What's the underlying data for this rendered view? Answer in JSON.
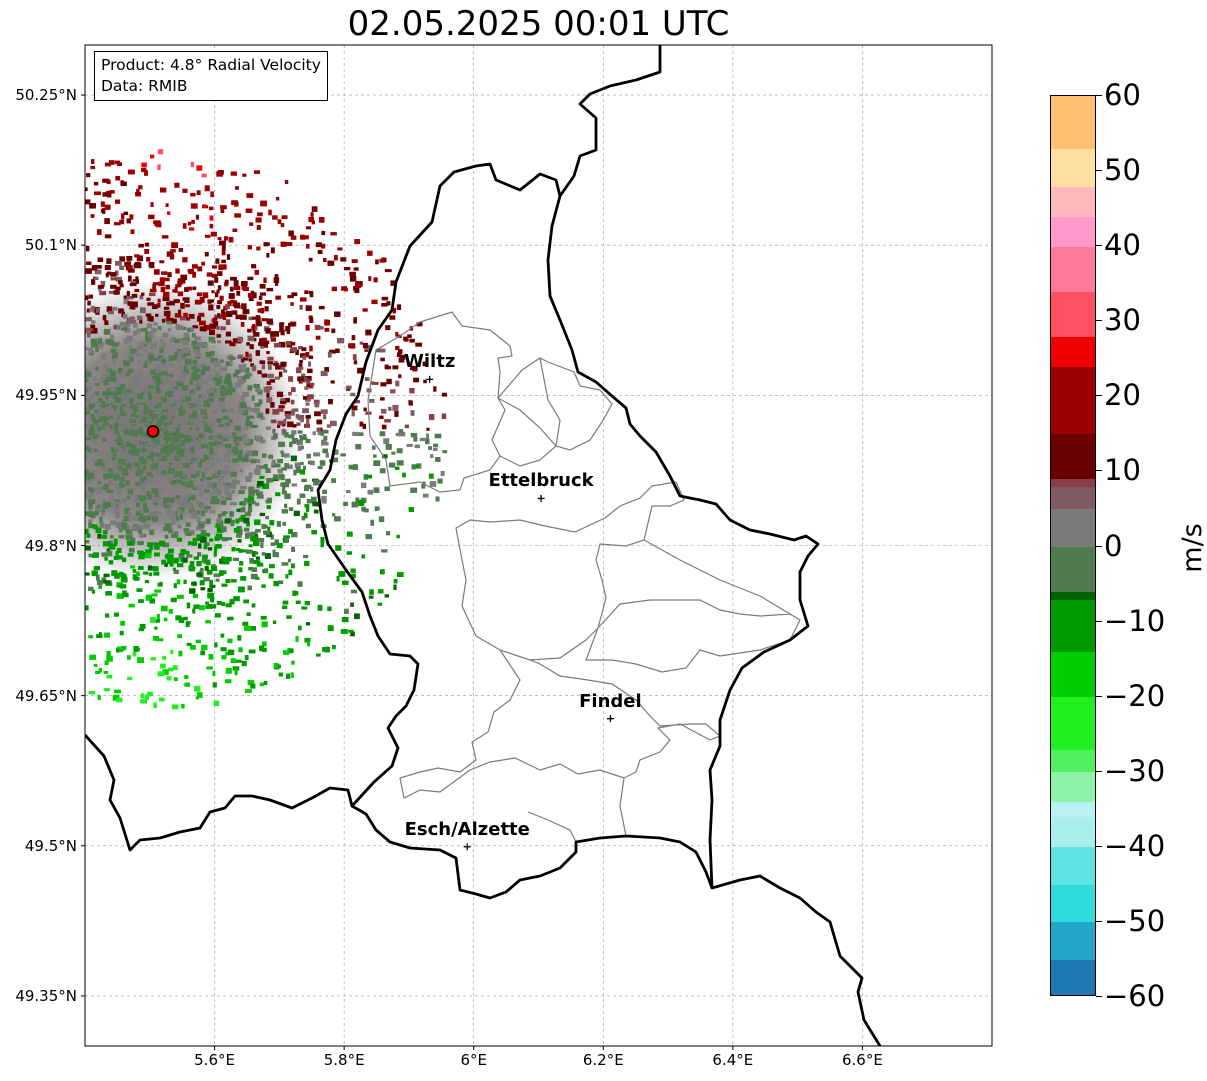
{
  "title": "02.05.2025 00:01 UTC",
  "info": {
    "product": "Product: 4.8° Radial Velocity",
    "data": "Data: RMIB"
  },
  "map": {
    "lon_range": [
      5.4,
      6.8
    ],
    "lat_range": [
      49.3,
      50.3
    ],
    "lat_ticks": [
      {
        "value": 50.25,
        "label": "50.25°N"
      },
      {
        "value": 50.1,
        "label": "50.1°N"
      },
      {
        "value": 49.95,
        "label": "49.95°N"
      },
      {
        "value": 49.8,
        "label": "49.8°N"
      },
      {
        "value": 49.65,
        "label": "49.65°N"
      },
      {
        "value": 49.5,
        "label": "49.5°N"
      },
      {
        "value": 49.35,
        "label": "49.35°N"
      }
    ],
    "lon_ticks": [
      {
        "value": 5.6,
        "label": "5.6°E"
      },
      {
        "value": 5.8,
        "label": "5.8°E"
      },
      {
        "value": 6.0,
        "label": "6°E"
      },
      {
        "value": 6.2,
        "label": "6.2°E"
      },
      {
        "value": 6.4,
        "label": "6.4°E"
      },
      {
        "value": 6.6,
        "label": "6.6°E"
      }
    ],
    "gridlines": true,
    "radar_site": {
      "lon": 5.505,
      "lat": 49.914,
      "color": "#ff0000"
    },
    "cities": [
      {
        "name": "Wiltz",
        "lon": 5.932,
        "lat": 49.966
      },
      {
        "name": "Ettelbruck",
        "lon": 6.104,
        "lat": 49.847
      },
      {
        "name": "Findel",
        "lon": 6.211,
        "lat": 49.627
      },
      {
        "name": "Esch/Alzette",
        "lon": 5.99,
        "lat": 49.499
      }
    ]
  },
  "colorbar": {
    "unit": "m/s",
    "min": -60,
    "max": 60,
    "ticks": [
      {
        "value": 60,
        "label": "60"
      },
      {
        "value": 50,
        "label": "50"
      },
      {
        "value": 40,
        "label": "40"
      },
      {
        "value": 30,
        "label": "30"
      },
      {
        "value": 20,
        "label": "20"
      },
      {
        "value": 10,
        "label": "10"
      },
      {
        "value": 0,
        "label": "0"
      },
      {
        "value": -10,
        "label": "−10"
      },
      {
        "value": -20,
        "label": "−20"
      },
      {
        "value": -30,
        "label": "−30"
      },
      {
        "value": -40,
        "label": "−40"
      },
      {
        "value": -50,
        "label": "−50"
      },
      {
        "value": -60,
        "label": "−60"
      }
    ],
    "stops": [
      {
        "value": -60,
        "color": "#1f77b4"
      },
      {
        "value": -55,
        "color": "#24a6c8"
      },
      {
        "value": -50,
        "color": "#2edcdc"
      },
      {
        "value": -45,
        "color": "#5fe3e3"
      },
      {
        "value": -40,
        "color": "#aaeeee"
      },
      {
        "value": -36,
        "color": "#b9f0f0"
      },
      {
        "value": -34,
        "color": "#8ef3a8"
      },
      {
        "value": -30,
        "color": "#52ef5e"
      },
      {
        "value": -27,
        "color": "#20f020"
      },
      {
        "value": -20,
        "color": "#00cc00"
      },
      {
        "value": -14,
        "color": "#009a00"
      },
      {
        "value": -7,
        "color": "#006400"
      },
      {
        "value": -6,
        "color": "#4f7b4f"
      },
      {
        "value": 0,
        "color": "#7b7b7b"
      },
      {
        "value": 5,
        "color": "#7f5a62"
      },
      {
        "value": 8,
        "color": "#8a3e47"
      },
      {
        "value": 9,
        "color": "#6a0000"
      },
      {
        "value": 15,
        "color": "#9a0000"
      },
      {
        "value": 24,
        "color": "#f00000"
      },
      {
        "value": 28,
        "color": "#ff4f62"
      },
      {
        "value": 34,
        "color": "#ff7a96"
      },
      {
        "value": 40,
        "color": "#ff99cc"
      },
      {
        "value": 44,
        "color": "#ffbbbb"
      },
      {
        "value": 48,
        "color": "#ffe0a0"
      },
      {
        "value": 53,
        "color": "#ffc070"
      },
      {
        "value": 60,
        "color": "#ff9a50"
      }
    ]
  }
}
